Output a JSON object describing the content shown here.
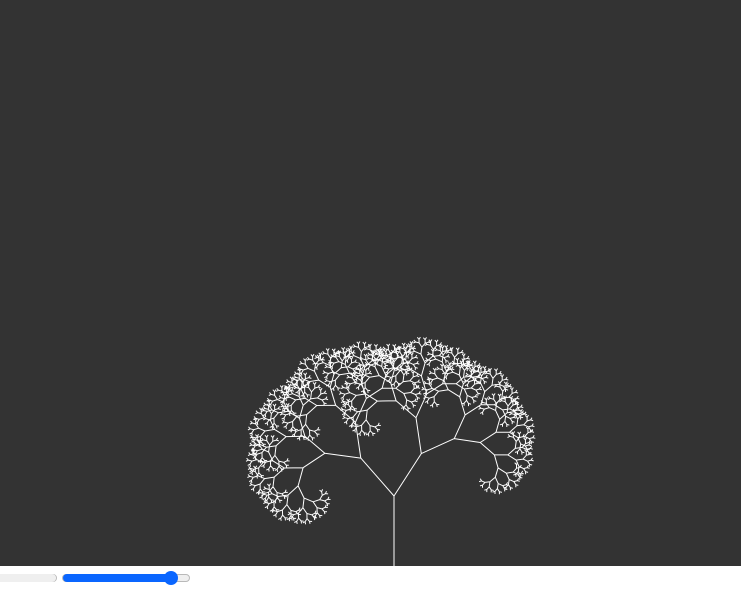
{
  "tree": {
    "depth": 10,
    "branch_ratio": 0.72,
    "branch_angle_deg": 37,
    "trunk_color": "#ffffff",
    "background_color": "#333333"
  },
  "controls": {
    "sliders": [
      {
        "name": "slider-1",
        "value": 1.0,
        "fill_color": "#efefef",
        "thumb_visible": false
      },
      {
        "name": "slider-2",
        "value": 0.86,
        "fill_color": "#0a66ff",
        "thumb_color": "#0a66ff"
      }
    ]
  },
  "colors": {
    "accent": "#0a66ff",
    "track": "#efefef",
    "track_border": "#b9b9b9"
  }
}
